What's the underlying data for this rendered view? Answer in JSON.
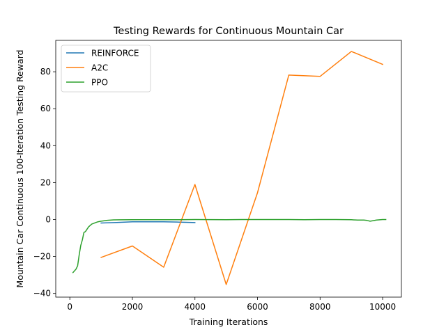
{
  "chart_data": {
    "type": "line",
    "title": "Testing Rewards for Continuous Mountain Car",
    "xlabel": "Training Iterations",
    "ylabel": "Mountain Car Continuous 100-Iteration Testing Reward",
    "xlim": [
      -450,
      10600
    ],
    "ylim": [
      -42,
      97
    ],
    "xticks": [
      0,
      2000,
      4000,
      6000,
      8000,
      10000
    ],
    "yticks": [
      -40,
      -20,
      0,
      20,
      40,
      60,
      80
    ],
    "grid": false,
    "legend": "top-left",
    "series": [
      {
        "name": "REINFORCE",
        "color": "#1f77b4",
        "x": [
          1000,
          1500,
          2000,
          2500,
          3000,
          3500,
          4000
        ],
        "y": [
          -1.9,
          -1.6,
          -1.2,
          -1.2,
          -1.2,
          -1.4,
          -1.6
        ]
      },
      {
        "name": "A2C",
        "color": "#ff7f0e",
        "x": [
          1000,
          2000,
          3000,
          4000,
          5000,
          6000,
          7000,
          8000,
          9000,
          10000
        ],
        "y": [
          -20.5,
          -14.3,
          -25.8,
          19.0,
          -35.2,
          14.5,
          78.2,
          77.5,
          91.0,
          84.0
        ]
      },
      {
        "name": "PPO",
        "color": "#2ca02c",
        "x": [
          100,
          200,
          250,
          300,
          350,
          400,
          450,
          500,
          600,
          700,
          800,
          900,
          1000,
          1200,
          1400,
          1600,
          2000,
          2500,
          3000,
          3500,
          4000,
          5000,
          5500,
          6000,
          7000,
          7500,
          8000,
          8500,
          9000,
          9200,
          9400,
          9500,
          9600,
          9700,
          9800,
          10000,
          10100
        ],
        "y": [
          -28.7,
          -26.8,
          -25.0,
          -19.0,
          -14.0,
          -11.0,
          -7.0,
          -6.5,
          -4.0,
          -2.5,
          -1.8,
          -1.2,
          -0.9,
          -0.4,
          -0.2,
          -0.15,
          -0.1,
          -0.1,
          -0.1,
          -0.1,
          0.0,
          -0.1,
          0.0,
          0.0,
          0.0,
          -0.1,
          0.0,
          0.0,
          -0.1,
          -0.3,
          -0.3,
          -0.5,
          -0.9,
          -0.6,
          -0.3,
          0.0,
          0.0
        ]
      }
    ]
  }
}
